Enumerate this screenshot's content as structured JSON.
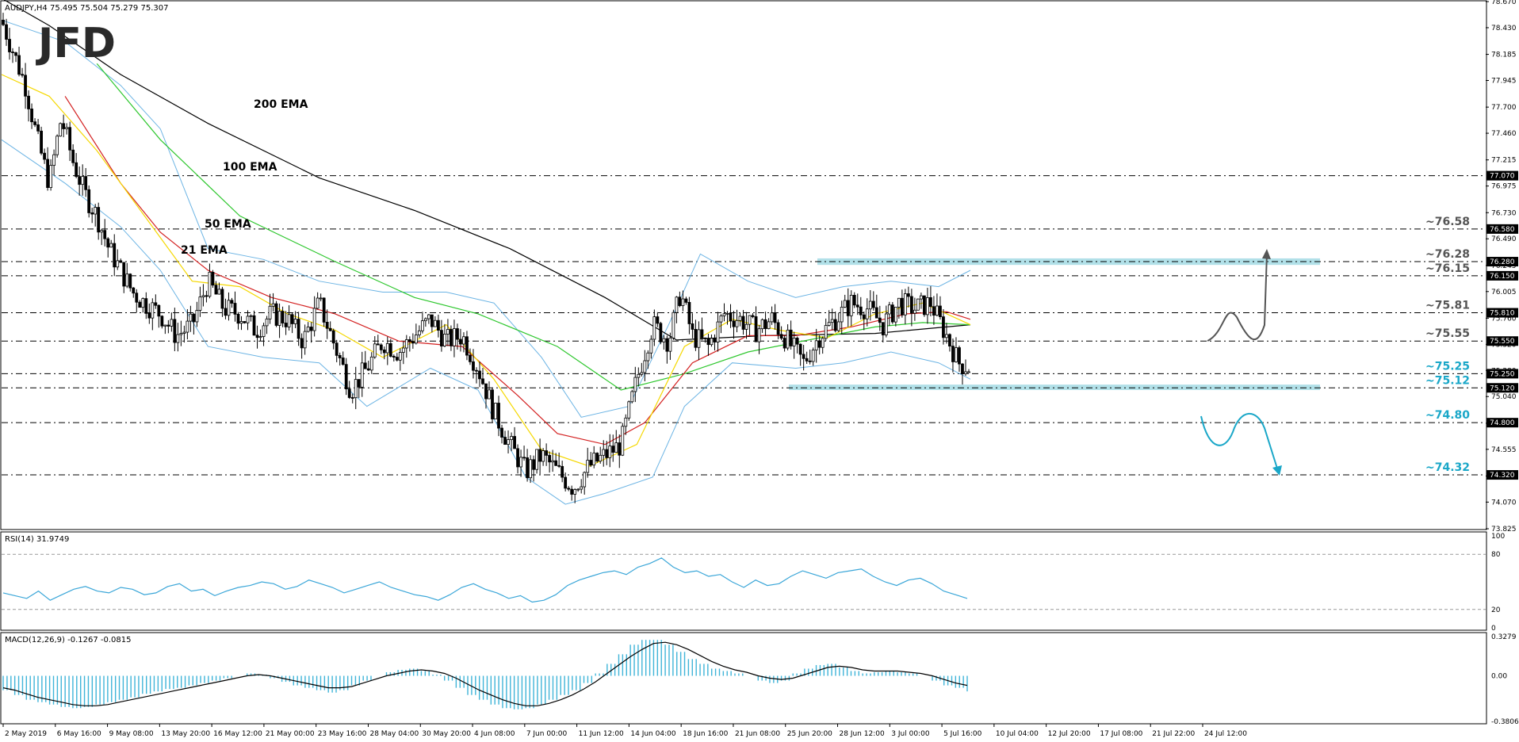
{
  "header": {
    "symbol_line": "AUDJPY,H4  75.495 75.504 75.279 75.307",
    "logo": "JFD"
  },
  "colors": {
    "candle": "#000000",
    "bollinger": "#6cb4e4",
    "ema200": "#000000",
    "ema100": "#2ec72e",
    "ema50": "#d32020",
    "ema21": "#f5d800",
    "zone": "#a8dde6",
    "level_text": "#555555",
    "level_text_cyan": "#1aa7c8",
    "rsi": "#3aa6d8",
    "macd_hist": "#3fb4d8",
    "macd_signal": "#000000",
    "arrow_up": "#555555",
    "arrow_down": "#1aa7c8"
  },
  "chart_data": [
    {
      "type": "candlestick",
      "panel": "main",
      "symbol": "AUDJPY",
      "timeframe": "H4",
      "ohlc_last": {
        "open": 75.495,
        "high": 75.504,
        "low": 75.279,
        "close": 75.307
      },
      "ylim": [
        73.825,
        78.67
      ],
      "y_ticks": [
        "78.670",
        "78.430",
        "78.185",
        "77.945",
        "77.700",
        "77.460",
        "77.215",
        "76.975",
        "76.730",
        "76.490",
        "76.245",
        "76.005",
        "75.760",
        "75.520",
        "75.280",
        "75.040",
        "74.795",
        "74.555",
        "74.310",
        "74.070",
        "73.825"
      ],
      "x_ticks": [
        "2 May 2019",
        "6 May 16:00",
        "9 May 08:00",
        "13 May 20:00",
        "16 May 12:00",
        "21 May 00:00",
        "23 May 16:00",
        "28 May 04:00",
        "30 May 20:00",
        "4 Jun 08:00",
        "7 Jun 00:00",
        "11 Jun 12:00",
        "14 Jun 04:00",
        "18 Jun 16:00",
        "21 Jun 08:00",
        "25 Jun 20:00",
        "28 Jun 12:00",
        "3 Jul 00:00",
        "5 Jul 16:00",
        "10 Jul 04:00",
        "12 Jul 20:00",
        "17 Jul 08:00",
        "21 Jul 22:00",
        "24 Jul 12:00"
      ],
      "price_tags": [
        "77.070",
        "76.580",
        "76.280",
        "76.150",
        "75.810",
        "75.550",
        "75.250",
        "75.120",
        "74.800",
        "74.320"
      ],
      "levels": [
        {
          "value": 77.07,
          "label": ""
        },
        {
          "value": 76.58,
          "label": "~76.58"
        },
        {
          "value": 76.28,
          "label": "~76.28"
        },
        {
          "value": 76.15,
          "label": "~76.15"
        },
        {
          "value": 75.81,
          "label": "~75.81"
        },
        {
          "value": 75.55,
          "label": "~75.55"
        },
        {
          "value": 75.25,
          "label": "~75.25"
        },
        {
          "value": 75.12,
          "label": "~75.12"
        },
        {
          "value": 74.8,
          "label": "~74.80"
        },
        {
          "value": 74.32,
          "label": "~74.32"
        }
      ],
      "zones": [
        {
          "from": 76.25,
          "to": 76.31
        },
        {
          "from": 75.1,
          "to": 75.15
        }
      ],
      "ema_labels": [
        {
          "text": "200 EMA",
          "color": "#000000"
        },
        {
          "text": "100 EMA",
          "color": "#2ec72e"
        },
        {
          "text": "50 EMA",
          "color": "#d32020"
        },
        {
          "text": "21 EMA",
          "color": "#f5d800"
        }
      ],
      "ema_points": {
        "ema200": [
          [
            0,
            78.7
          ],
          [
            60,
            78.45
          ],
          [
            150,
            78.0
          ],
          [
            260,
            77.55
          ],
          [
            400,
            77.05
          ],
          [
            520,
            76.75
          ],
          [
            640,
            76.4
          ],
          [
            760,
            75.95
          ],
          [
            850,
            75.56
          ],
          [
            960,
            75.6
          ],
          [
            1100,
            75.62
          ],
          [
            1220,
            75.7
          ]
        ],
        "ema100": [
          [
            120,
            78.1
          ],
          [
            200,
            77.4
          ],
          [
            300,
            76.7
          ],
          [
            420,
            76.28
          ],
          [
            520,
            75.95
          ],
          [
            600,
            75.8
          ],
          [
            700,
            75.5
          ],
          [
            780,
            75.1
          ],
          [
            860,
            75.25
          ],
          [
            940,
            75.45
          ],
          [
            1030,
            75.58
          ],
          [
            1100,
            75.68
          ],
          [
            1160,
            75.72
          ],
          [
            1220,
            75.7
          ]
        ],
        "ema50": [
          [
            80,
            77.8
          ],
          [
            150,
            77.0
          ],
          [
            200,
            76.55
          ],
          [
            260,
            76.2
          ],
          [
            340,
            75.95
          ],
          [
            420,
            75.8
          ],
          [
            500,
            75.55
          ],
          [
            580,
            75.5
          ],
          [
            650,
            75.05
          ],
          [
            700,
            74.7
          ],
          [
            760,
            74.6
          ],
          [
            810,
            74.8
          ],
          [
            870,
            75.35
          ],
          [
            940,
            75.6
          ],
          [
            1000,
            75.6
          ],
          [
            1070,
            75.68
          ],
          [
            1140,
            75.8
          ],
          [
            1190,
            75.82
          ],
          [
            1220,
            75.75
          ]
        ],
        "ema21": [
          [
            0,
            78.0
          ],
          [
            60,
            77.8
          ],
          [
            120,
            77.3
          ],
          [
            180,
            76.7
          ],
          [
            240,
            76.1
          ],
          [
            300,
            76.05
          ],
          [
            360,
            75.8
          ],
          [
            420,
            75.65
          ],
          [
            480,
            75.4
          ],
          [
            560,
            75.7
          ],
          [
            620,
            75.2
          ],
          [
            680,
            74.55
          ],
          [
            740,
            74.4
          ],
          [
            800,
            74.6
          ],
          [
            860,
            75.5
          ],
          [
            920,
            75.75
          ],
          [
            980,
            75.65
          ],
          [
            1040,
            75.58
          ],
          [
            1100,
            75.8
          ],
          [
            1160,
            75.9
          ],
          [
            1220,
            75.7
          ]
        ]
      },
      "bollinger_upper": [
        [
          0,
          78.5
        ],
        [
          80,
          78.3
        ],
        [
          150,
          77.9
        ],
        [
          200,
          77.5
        ],
        [
          260,
          76.4
        ],
        [
          330,
          76.3
        ],
        [
          400,
          76.1
        ],
        [
          480,
          76.0
        ],
        [
          560,
          76.0
        ],
        [
          620,
          75.9
        ],
        [
          680,
          75.4
        ],
        [
          730,
          74.85
        ],
        [
          790,
          74.95
        ],
        [
          840,
          75.7
        ],
        [
          880,
          76.35
        ],
        [
          940,
          76.1
        ],
        [
          1000,
          75.95
        ],
        [
          1060,
          76.05
        ],
        [
          1120,
          76.1
        ],
        [
          1180,
          76.05
        ],
        [
          1220,
          76.2
        ]
      ],
      "bollinger_lower": [
        [
          0,
          77.4
        ],
        [
          80,
          77.0
        ],
        [
          150,
          76.6
        ],
        [
          200,
          76.2
        ],
        [
          260,
          75.5
        ],
        [
          330,
          75.4
        ],
        [
          400,
          75.35
        ],
        [
          460,
          74.95
        ],
        [
          540,
          75.3
        ],
        [
          600,
          75.1
        ],
        [
          660,
          74.3
        ],
        [
          710,
          74.05
        ],
        [
          760,
          74.15
        ],
        [
          820,
          74.3
        ],
        [
          860,
          74.95
        ],
        [
          920,
          75.35
        ],
        [
          1000,
          75.3
        ],
        [
          1060,
          75.35
        ],
        [
          1120,
          75.45
        ],
        [
          1180,
          75.35
        ],
        [
          1220,
          75.2
        ]
      ],
      "close_path": [
        [
          0,
          78.5
        ],
        [
          15,
          78.2
        ],
        [
          30,
          77.9
        ],
        [
          45,
          77.4
        ],
        [
          60,
          77.0
        ],
        [
          75,
          77.6
        ],
        [
          90,
          77.2
        ],
        [
          105,
          76.9
        ],
        [
          120,
          76.7
        ],
        [
          135,
          76.4
        ],
        [
          150,
          76.2
        ],
        [
          165,
          76.0
        ],
        [
          180,
          75.9
        ],
        [
          200,
          75.8
        ],
        [
          220,
          75.6
        ],
        [
          240,
          75.7
        ],
        [
          260,
          76.1
        ],
        [
          280,
          75.85
        ],
        [
          300,
          75.8
        ],
        [
          320,
          75.65
        ],
        [
          340,
          75.8
        ],
        [
          360,
          75.75
        ],
        [
          380,
          75.55
        ],
        [
          400,
          75.9
        ],
        [
          420,
          75.5
        ],
        [
          440,
          75.1
        ],
        [
          460,
          75.3
        ],
        [
          480,
          75.55
        ],
        [
          500,
          75.45
        ],
        [
          520,
          75.6
        ],
        [
          540,
          75.75
        ],
        [
          560,
          75.55
        ],
        [
          580,
          75.6
        ],
        [
          600,
          75.3
        ],
        [
          620,
          74.9
        ],
        [
          640,
          74.6
        ],
        [
          660,
          74.35
        ],
        [
          680,
          74.5
        ],
        [
          700,
          74.35
        ],
        [
          720,
          74.2
        ],
        [
          740,
          74.4
        ],
        [
          760,
          74.5
        ],
        [
          780,
          74.6
        ],
        [
          800,
          75.2
        ],
        [
          820,
          75.7
        ],
        [
          840,
          75.55
        ],
        [
          855,
          76.0
        ],
        [
          870,
          75.6
        ],
        [
          890,
          75.5
        ],
        [
          910,
          75.8
        ],
        [
          930,
          75.75
        ],
        [
          950,
          75.65
        ],
        [
          970,
          75.75
        ],
        [
          990,
          75.55
        ],
        [
          1010,
          75.35
        ],
        [
          1030,
          75.6
        ],
        [
          1050,
          75.75
        ],
        [
          1070,
          75.9
        ],
        [
          1090,
          75.85
        ],
        [
          1110,
          75.7
        ],
        [
          1130,
          75.9
        ],
        [
          1150,
          75.85
        ],
        [
          1170,
          75.9
        ],
        [
          1190,
          75.6
        ],
        [
          1205,
          75.35
        ],
        [
          1220,
          75.307
        ]
      ]
    },
    {
      "type": "line",
      "panel": "rsi",
      "title": "RSI(14) 31.9749",
      "ylim": [
        0,
        100
      ],
      "y_ticks": [
        "100",
        "80",
        "20",
        "0"
      ],
      "levels": [
        80,
        20
      ],
      "values": [
        38,
        35,
        32,
        40,
        30,
        36,
        42,
        45,
        40,
        38,
        44,
        42,
        36,
        38,
        45,
        48,
        40,
        42,
        35,
        40,
        44,
        46,
        50,
        48,
        42,
        45,
        52,
        48,
        44,
        38,
        42,
        46,
        50,
        44,
        40,
        36,
        34,
        30,
        36,
        44,
        48,
        42,
        38,
        32,
        35,
        28,
        30,
        36,
        46,
        52,
        56,
        60,
        62,
        58,
        66,
        70,
        76,
        66,
        60,
        62,
        56,
        58,
        50,
        44,
        52,
        46,
        48,
        56,
        62,
        58,
        54,
        60,
        62,
        64,
        56,
        50,
        46,
        52,
        54,
        48,
        40,
        36,
        31.97
      ]
    },
    {
      "type": "bar+line",
      "panel": "macd",
      "title": "MACD(12,26,9) -0.1267 -0.0815",
      "ylim": [
        -0.3806,
        0.3279
      ],
      "y_ticks": [
        "0.3279",
        "0.00",
        "-0.3806"
      ],
      "histogram": [
        -0.12,
        -0.16,
        -0.2,
        -0.22,
        -0.24,
        -0.26,
        -0.27,
        -0.26,
        -0.24,
        -0.22,
        -0.2,
        -0.18,
        -0.15,
        -0.13,
        -0.11,
        -0.1,
        -0.08,
        -0.06,
        -0.04,
        -0.02,
        0.0,
        0.02,
        0.01,
        -0.02,
        -0.05,
        -0.08,
        -0.1,
        -0.12,
        -0.14,
        -0.12,
        -0.08,
        -0.04,
        0.0,
        0.03,
        0.05,
        0.06,
        0.04,
        0.01,
        -0.04,
        -0.1,
        -0.16,
        -0.2,
        -0.24,
        -0.27,
        -0.28,
        -0.27,
        -0.24,
        -0.2,
        -0.16,
        -0.12,
        -0.06,
        0.02,
        0.1,
        0.18,
        0.26,
        0.3,
        0.3,
        0.26,
        0.2,
        0.14,
        0.1,
        0.06,
        0.04,
        0.02,
        0.0,
        -0.04,
        -0.06,
        -0.04,
        0.02,
        0.06,
        0.09,
        0.1,
        0.07,
        0.04,
        0.02,
        0.03,
        0.04,
        0.03,
        0.02,
        0.0,
        -0.04,
        -0.08,
        -0.1,
        -0.13
      ],
      "signal": [
        -0.1,
        -0.12,
        -0.15,
        -0.18,
        -0.2,
        -0.22,
        -0.24,
        -0.25,
        -0.25,
        -0.24,
        -0.22,
        -0.2,
        -0.18,
        -0.16,
        -0.14,
        -0.12,
        -0.1,
        -0.08,
        -0.06,
        -0.04,
        -0.02,
        0.0,
        0.01,
        0.0,
        -0.02,
        -0.04,
        -0.06,
        -0.08,
        -0.1,
        -0.1,
        -0.09,
        -0.06,
        -0.03,
        0.0,
        0.02,
        0.04,
        0.05,
        0.04,
        0.02,
        -0.02,
        -0.07,
        -0.12,
        -0.16,
        -0.2,
        -0.23,
        -0.25,
        -0.25,
        -0.23,
        -0.2,
        -0.16,
        -0.11,
        -0.05,
        0.02,
        0.09,
        0.16,
        0.22,
        0.27,
        0.28,
        0.26,
        0.22,
        0.17,
        0.12,
        0.08,
        0.05,
        0.03,
        0.0,
        -0.02,
        -0.03,
        -0.02,
        0.01,
        0.04,
        0.07,
        0.08,
        0.07,
        0.05,
        0.04,
        0.04,
        0.04,
        0.03,
        0.02,
        0.0,
        -0.03,
        -0.06,
        -0.08
      ]
    }
  ]
}
